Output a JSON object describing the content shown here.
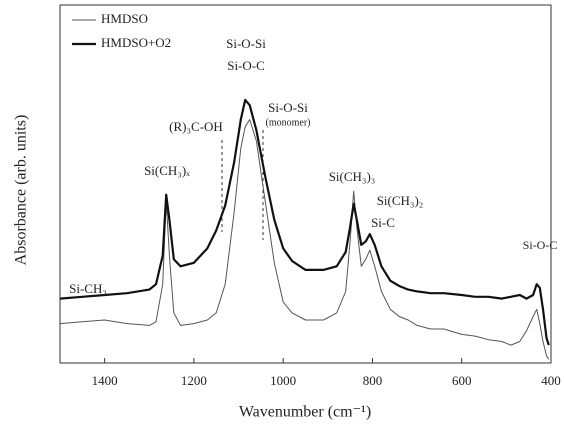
{
  "chart_data": {
    "type": "line",
    "xlabel": "Wavenumber (cm⁻¹)",
    "ylabel": "Absorbance (arb. units)",
    "x": [
      1500,
      1450,
      1400,
      1350,
      1300,
      1285,
      1270,
      1262,
      1255,
      1245,
      1230,
      1200,
      1170,
      1150,
      1130,
      1110,
      1095,
      1085,
      1075,
      1060,
      1040,
      1020,
      1000,
      980,
      950,
      910,
      880,
      860,
      850,
      842,
      835,
      825,
      815,
      806,
      795,
      780,
      760,
      740,
      720,
      700,
      670,
      640,
      600,
      570,
      540,
      510,
      490,
      470,
      455,
      440,
      432,
      425,
      418,
      410,
      405
    ],
    "series": [
      {
        "name": "HMDSO",
        "color": "#555555",
        "width": 1,
        "values": [
          11,
          11.5,
          12,
          11,
          10.5,
          11.5,
          22,
          45.5,
          30,
          14,
          10.5,
          11,
          12,
          14,
          22,
          42,
          60,
          66,
          68,
          62,
          45,
          28,
          17,
          14,
          12,
          12,
          14,
          20,
          34,
          48,
          38,
          27,
          29,
          31.5,
          27,
          20,
          15,
          13,
          12,
          10.5,
          9.5,
          9.5,
          8,
          7.5,
          6.5,
          6,
          5,
          6,
          9,
          13,
          15,
          11,
          6,
          2,
          1
        ]
      },
      {
        "name": "HMDSO+O2",
        "color": "#111111",
        "width": 2.2,
        "values": [
          18,
          18.5,
          19,
          19.5,
          20.5,
          22,
          30,
          47,
          40,
          29,
          27,
          28,
          32,
          37,
          44,
          56,
          68,
          73.5,
          72,
          65,
          52,
          40,
          32,
          28.5,
          26,
          26,
          27,
          31,
          38,
          44.5,
          40,
          33,
          34,
          36,
          33,
          27,
          23,
          21.5,
          20.5,
          20,
          19.5,
          19.5,
          19,
          18.5,
          18.5,
          18,
          18.5,
          19,
          18,
          19,
          22,
          21,
          15,
          7,
          5
        ]
      }
    ],
    "xlim": [
      1500,
      400
    ],
    "ylim": [
      0,
      100
    ],
    "xticks": [
      1400,
      1200,
      1000,
      800,
      600,
      400
    ],
    "legend": "upper-left",
    "annotations": [
      "Si-CH₃",
      "Si(CH₃)ₓ",
      "(R)₃C-OH",
      "Si-O-Si",
      "Si-O-C",
      "Si-O-Si",
      "(monomer)",
      "Si(CH₃)₃",
      "Si(CH₃)₂",
      "Si-C",
      "Si-O-C"
    ]
  }
}
